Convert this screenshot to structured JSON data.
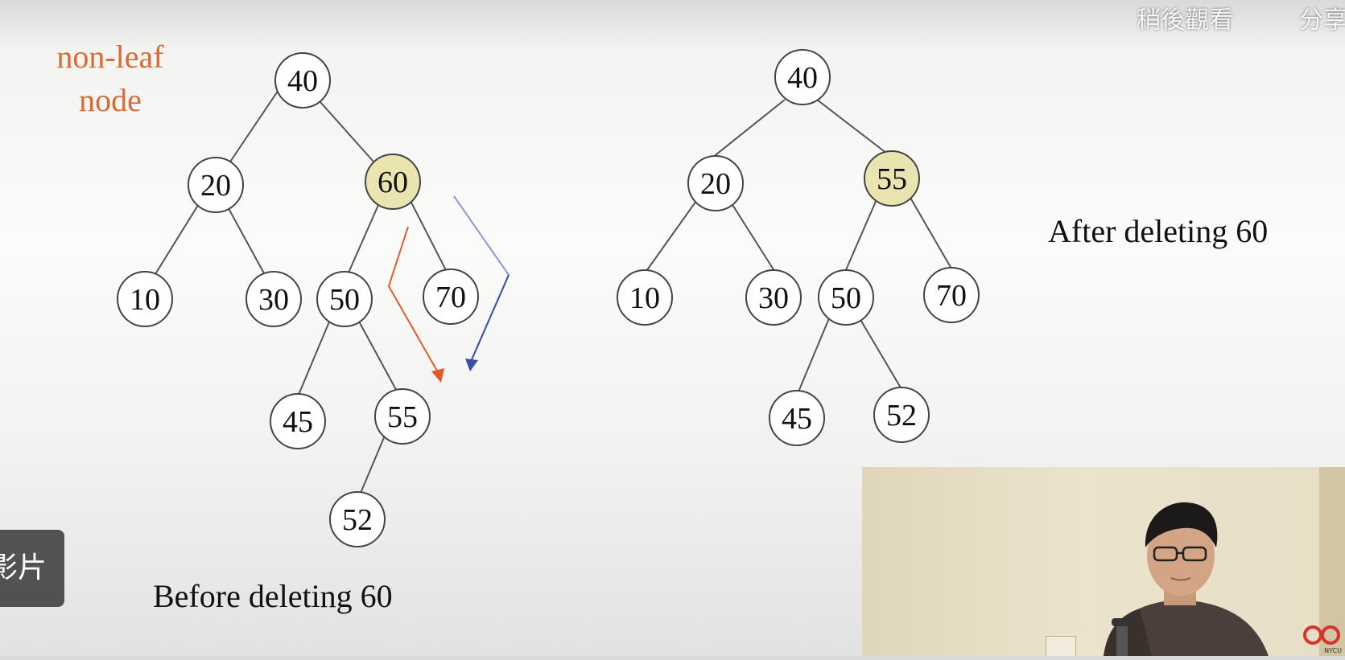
{
  "slide": {
    "annotation_line1": "non-leaf",
    "annotation_line2": "node",
    "before_caption": "Before deleting 60",
    "after_caption": "After deleting 60",
    "highlight_color": "#e9e4b0",
    "annotation_color": "#d96a34",
    "red_arrow_color": "#e35a2a",
    "blue_arrow_color": "#3a4fa8"
  },
  "before_tree": {
    "nodes": [
      "40",
      "20",
      "60",
      "10",
      "30",
      "50",
      "70",
      "45",
      "55",
      "52"
    ],
    "highlighted": "60"
  },
  "after_tree": {
    "nodes": [
      "40",
      "20",
      "55",
      "10",
      "30",
      "50",
      "70",
      "45",
      "52"
    ],
    "highlighted": "55"
  },
  "player": {
    "watch_later": "稍後觀看",
    "share": "分享",
    "more_videos_chip": "影片"
  },
  "pip": {
    "logo_text": "NYCU"
  }
}
